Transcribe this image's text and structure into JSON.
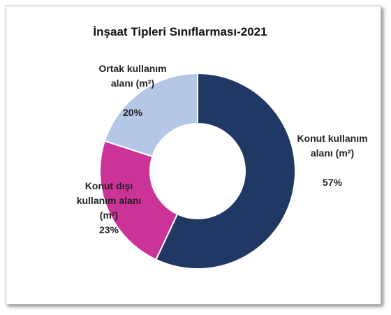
{
  "chart_data": {
    "type": "donut",
    "title": "İnşaat Tipleri Sınıflarması-2021",
    "categories": [
      "Konut kullanım alanı (m²)",
      "Konut dışı kullanım alanı (m²)",
      "Ortak kullanım alanı (m²)"
    ],
    "values": [
      57,
      23,
      20
    ],
    "value_labels": [
      "57%",
      "23%",
      "20%"
    ],
    "colors": [
      "#1f3864",
      "#cc3399",
      "#b4c7e7"
    ]
  }
}
